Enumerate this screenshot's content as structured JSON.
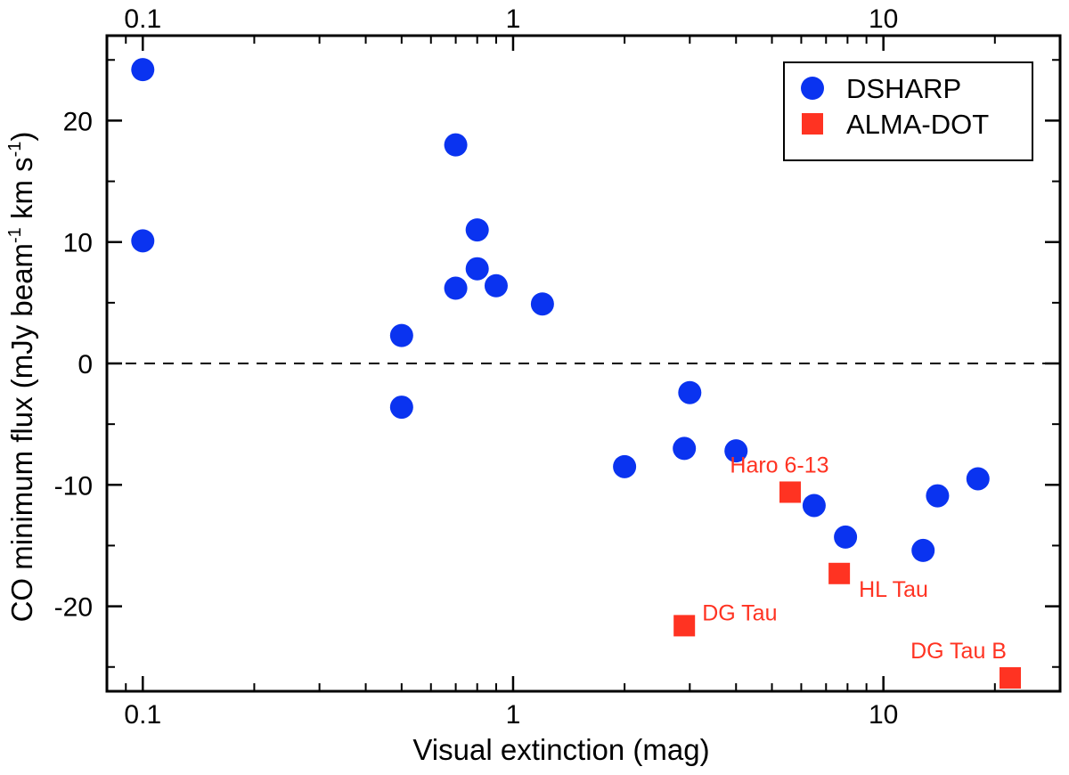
{
  "chart_data": {
    "type": "scatter",
    "xscale": "log",
    "xlim": [
      0.08,
      30
    ],
    "ylim": [
      -27,
      27
    ],
    "xlabel": "Visual extinction (mag)",
    "ylabel": "CO minimum flux (mJy beam",
    "ylabel_parts": {
      "p1": "CO minimum flux (mJy beam",
      "sup1": "-1",
      "p2": " km s",
      "sup2": "-1",
      "p3": ")"
    },
    "x_ticks": [
      {
        "value": 0.1,
        "label": "0.1"
      },
      {
        "value": 1,
        "label": "1"
      },
      {
        "value": 10,
        "label": "10"
      }
    ],
    "y_ticks": [
      {
        "value": 20,
        "label": "20"
      },
      {
        "value": 10,
        "label": "10"
      },
      {
        "value": 0,
        "label": "0"
      },
      {
        "value": -10,
        "label": "-10"
      },
      {
        "value": -20,
        "label": "-20"
      }
    ],
    "reference_line": {
      "y": 0,
      "style": "dashed"
    },
    "legend": {
      "position": "top-right"
    },
    "series": [
      {
        "name": "DSHARP",
        "marker": "circle",
        "color": "#0a33f0",
        "points": [
          {
            "x": 0.1,
            "y": 24.2
          },
          {
            "x": 0.1,
            "y": 10.1
          },
          {
            "x": 0.5,
            "y": 2.3
          },
          {
            "x": 0.5,
            "y": -3.6
          },
          {
            "x": 0.7,
            "y": 18.0
          },
          {
            "x": 0.7,
            "y": 6.2
          },
          {
            "x": 0.8,
            "y": 11.0
          },
          {
            "x": 0.8,
            "y": 7.8
          },
          {
            "x": 0.9,
            "y": 6.4
          },
          {
            "x": 1.2,
            "y": 4.9
          },
          {
            "x": 2.0,
            "y": -8.5
          },
          {
            "x": 2.9,
            "y": -7.0
          },
          {
            "x": 3.0,
            "y": -2.4
          },
          {
            "x": 4.0,
            "y": -7.2
          },
          {
            "x": 6.5,
            "y": -11.7
          },
          {
            "x": 7.9,
            "y": -14.3
          },
          {
            "x": 12.8,
            "y": -15.4
          },
          {
            "x": 14.0,
            "y": -10.9
          },
          {
            "x": 18.0,
            "y": -9.5
          }
        ]
      },
      {
        "name": "ALMA-DOT",
        "marker": "square",
        "color": "#ff3322",
        "points": [
          {
            "x": 2.9,
            "y": -21.6,
            "label": "DG Tau",
            "label_pos": "right"
          },
          {
            "x": 5.6,
            "y": -10.6,
            "label": "Haro 6-13",
            "label_pos": "above"
          },
          {
            "x": 7.6,
            "y": -17.3,
            "label": "HL Tau",
            "label_pos": "below-right"
          },
          {
            "x": 22.0,
            "y": -25.9,
            "label": "DG Tau B",
            "label_pos": "above-left"
          }
        ]
      }
    ]
  }
}
